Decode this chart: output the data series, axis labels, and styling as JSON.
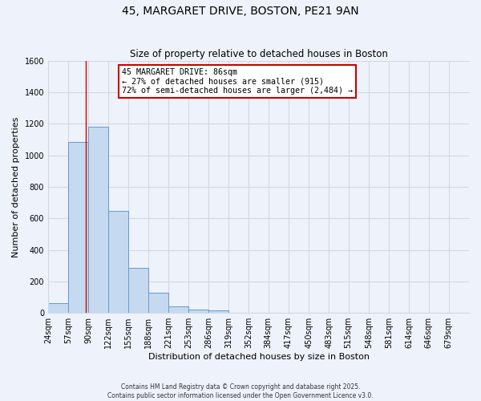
{
  "title": "45, MARGARET DRIVE, BOSTON, PE21 9AN",
  "subtitle": "Size of property relative to detached houses in Boston",
  "xlabel": "Distribution of detached houses by size in Boston",
  "ylabel": "Number of detached properties",
  "bar_values": [
    60,
    1085,
    1180,
    645,
    285,
    130,
    40,
    20,
    15,
    0,
    0,
    0,
    0,
    0,
    0,
    0,
    0,
    0,
    0,
    0,
    0
  ],
  "bin_labels": [
    "24sqm",
    "57sqm",
    "90sqm",
    "122sqm",
    "155sqm",
    "188sqm",
    "221sqm",
    "253sqm",
    "286sqm",
    "319sqm",
    "352sqm",
    "384sqm",
    "417sqm",
    "450sqm",
    "483sqm",
    "515sqm",
    "548sqm",
    "581sqm",
    "614sqm",
    "646sqm",
    "679sqm"
  ],
  "bar_color": "#c5daf0",
  "bar_edge_color": "#6699cc",
  "ylim": [
    0,
    1600
  ],
  "yticks": [
    0,
    200,
    400,
    600,
    800,
    1000,
    1200,
    1400,
    1600
  ],
  "property_sqm": 86,
  "annotation_title": "45 MARGARET DRIVE: 86sqm",
  "annotation_line1": "← 27% of detached houses are smaller (915)",
  "annotation_line2": "72% of semi-detached houses are larger (2,484) →",
  "annotation_box_color": "#ffffff",
  "annotation_box_edge_color": "#cc0000",
  "vline_color": "#cc0000",
  "background_color": "#eef2fb",
  "grid_color": "#d0d8e8",
  "footer1": "Contains HM Land Registry data © Crown copyright and database right 2025.",
  "footer2": "Contains public sector information licensed under the Open Government Licence v3.0.",
  "bin_edges": [
    24,
    57,
    90,
    122,
    155,
    188,
    221,
    253,
    286,
    319,
    352,
    384,
    417,
    450,
    483,
    515,
    548,
    581,
    614,
    646,
    679,
    712
  ]
}
